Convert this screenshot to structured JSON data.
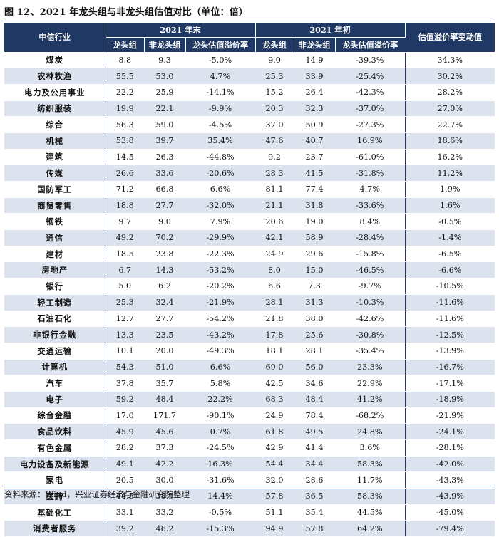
{
  "title": "图 12、2021 年龙头组与非龙头组估值对比（单位：倍）",
  "table": {
    "header_industry": "中信行业",
    "group_end": "2021 年末",
    "group_start": "2021 年初",
    "sub_leader": "龙头组",
    "sub_nonleader": "非龙头组",
    "sub_premium": "龙头估值溢价率",
    "header_change": "估值溢价率变动值",
    "rows": [
      [
        "煤炭",
        "8.8",
        "9.3",
        "-5.0%",
        "9.0",
        "14.9",
        "-39.3%",
        "34.3%"
      ],
      [
        "农林牧渔",
        "55.5",
        "53.0",
        "4.7%",
        "25.3",
        "33.9",
        "-25.4%",
        "30.2%"
      ],
      [
        "电力及公用事业",
        "22.2",
        "25.9",
        "-14.1%",
        "15.2",
        "26.4",
        "-42.3%",
        "28.2%"
      ],
      [
        "纺织服装",
        "19.9",
        "22.1",
        "-9.9%",
        "20.3",
        "32.3",
        "-37.0%",
        "27.0%"
      ],
      [
        "综合",
        "56.3",
        "59.0",
        "-4.5%",
        "37.0",
        "50.9",
        "-27.3%",
        "22.7%"
      ],
      [
        "机械",
        "53.8",
        "39.7",
        "35.4%",
        "47.6",
        "40.7",
        "16.9%",
        "18.6%"
      ],
      [
        "建筑",
        "14.5",
        "26.3",
        "-44.8%",
        "9.2",
        "23.7",
        "-61.0%",
        "16.2%"
      ],
      [
        "传媒",
        "26.6",
        "33.6",
        "-20.6%",
        "28.3",
        "41.5",
        "-31.8%",
        "11.2%"
      ],
      [
        "国防军工",
        "71.2",
        "66.8",
        "6.6%",
        "81.1",
        "77.4",
        "4.7%",
        "1.9%"
      ],
      [
        "商贸零售",
        "18.8",
        "27.7",
        "-32.0%",
        "21.1",
        "31.8",
        "-33.6%",
        "1.6%"
      ],
      [
        "钢铁",
        "9.7",
        "9.0",
        "7.9%",
        "20.6",
        "19.0",
        "8.4%",
        "-0.5%"
      ],
      [
        "通信",
        "49.2",
        "70.2",
        "-29.9%",
        "42.1",
        "58.9",
        "-28.4%",
        "-1.4%"
      ],
      [
        "建材",
        "18.5",
        "23.8",
        "-22.3%",
        "24.9",
        "29.6",
        "-15.8%",
        "-6.5%"
      ],
      [
        "房地产",
        "6.7",
        "14.3",
        "-53.2%",
        "8.0",
        "15.0",
        "-46.5%",
        "-6.6%"
      ],
      [
        "银行",
        "5.0",
        "6.2",
        "-20.2%",
        "6.6",
        "7.3",
        "-9.7%",
        "-10.5%"
      ],
      [
        "轻工制造",
        "25.3",
        "32.4",
        "-21.9%",
        "28.1",
        "31.3",
        "-10.3%",
        "-11.6%"
      ],
      [
        "石油石化",
        "12.7",
        "27.7",
        "-54.2%",
        "21.8",
        "38.0",
        "-42.6%",
        "-11.6%"
      ],
      [
        "非银行金融",
        "13.3",
        "23.5",
        "-43.2%",
        "17.8",
        "25.6",
        "-30.8%",
        "-12.5%"
      ],
      [
        "交通运输",
        "10.1",
        "20.0",
        "-49.3%",
        "18.1",
        "28.1",
        "-35.4%",
        "-13.9%"
      ],
      [
        "计算机",
        "54.3",
        "51.0",
        "6.6%",
        "69.0",
        "56.0",
        "23.3%",
        "-16.7%"
      ],
      [
        "汽车",
        "37.8",
        "35.7",
        "5.8%",
        "42.5",
        "34.6",
        "22.9%",
        "-17.1%"
      ],
      [
        "电子",
        "59.2",
        "48.4",
        "22.2%",
        "68.3",
        "48.4",
        "41.2%",
        "-18.9%"
      ],
      [
        "综合金融",
        "17.0",
        "171.7",
        "-90.1%",
        "24.9",
        "78.4",
        "-68.2%",
        "-21.9%"
      ],
      [
        "食品饮料",
        "45.9",
        "45.6",
        "0.7%",
        "61.8",
        "49.5",
        "24.8%",
        "-24.1%"
      ],
      [
        "有色金属",
        "28.2",
        "37.3",
        "-24.5%",
        "42.9",
        "41.4",
        "3.6%",
        "-28.1%"
      ],
      [
        "电力设备及新能源",
        "49.1",
        "42.2",
        "16.3%",
        "54.4",
        "34.4",
        "58.3%",
        "-42.0%"
      ],
      [
        "家电",
        "20.5",
        "30.0",
        "-31.6%",
        "32.0",
        "28.6",
        "11.7%",
        "-43.3%"
      ],
      [
        "医药",
        "44.5",
        "38.9",
        "14.4%",
        "57.8",
        "36.5",
        "58.3%",
        "-43.9%"
      ],
      [
        "基础化工",
        "33.1",
        "33.2",
        "-0.5%",
        "51.1",
        "35.4",
        "44.5%",
        "-45.0%"
      ],
      [
        "消费者服务",
        "39.2",
        "46.2",
        "-15.3%",
        "94.9",
        "57.8",
        "64.2%",
        "-79.4%"
      ]
    ]
  },
  "source": "资料来源：Wind，兴业证券经济与金融研究院整理",
  "colors": {
    "header_bg": "#1f3864",
    "stripe": "#dde3ee"
  }
}
